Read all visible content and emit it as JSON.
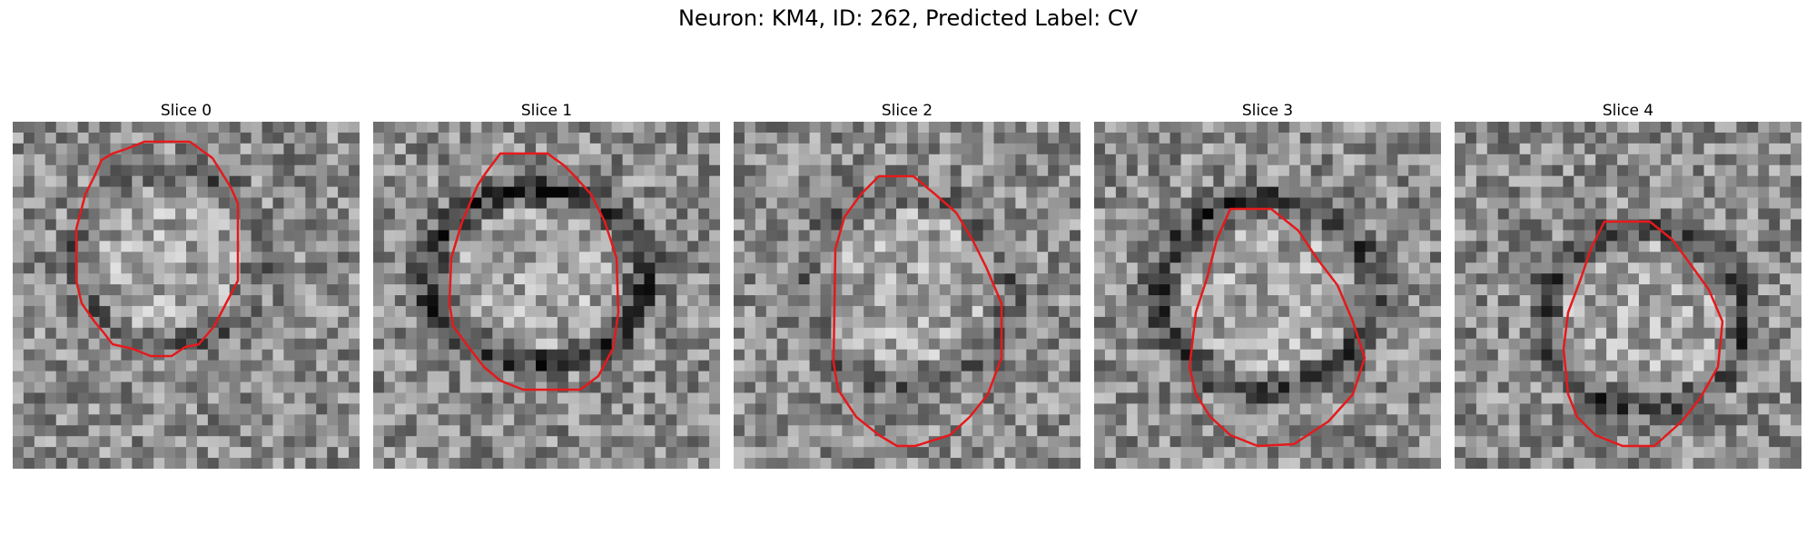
{
  "figure": {
    "title": "Neuron: KM4, ID: 262, Predicted Label: CV"
  },
  "contour_color": "#e41a1c",
  "panels": [
    {
      "title": "Slice 0",
      "ring_strength": 0.45,
      "seed": 11
    },
    {
      "title": "Slice 1",
      "ring_strength": 0.85,
      "seed": 23
    },
    {
      "title": "Slice 2",
      "ring_strength": 0.35,
      "seed": 37
    },
    {
      "title": "Slice 3",
      "ring_strength": 0.75,
      "seed": 51
    },
    {
      "title": "Slice 4",
      "ring_strength": 0.65,
      "seed": 67
    }
  ]
}
